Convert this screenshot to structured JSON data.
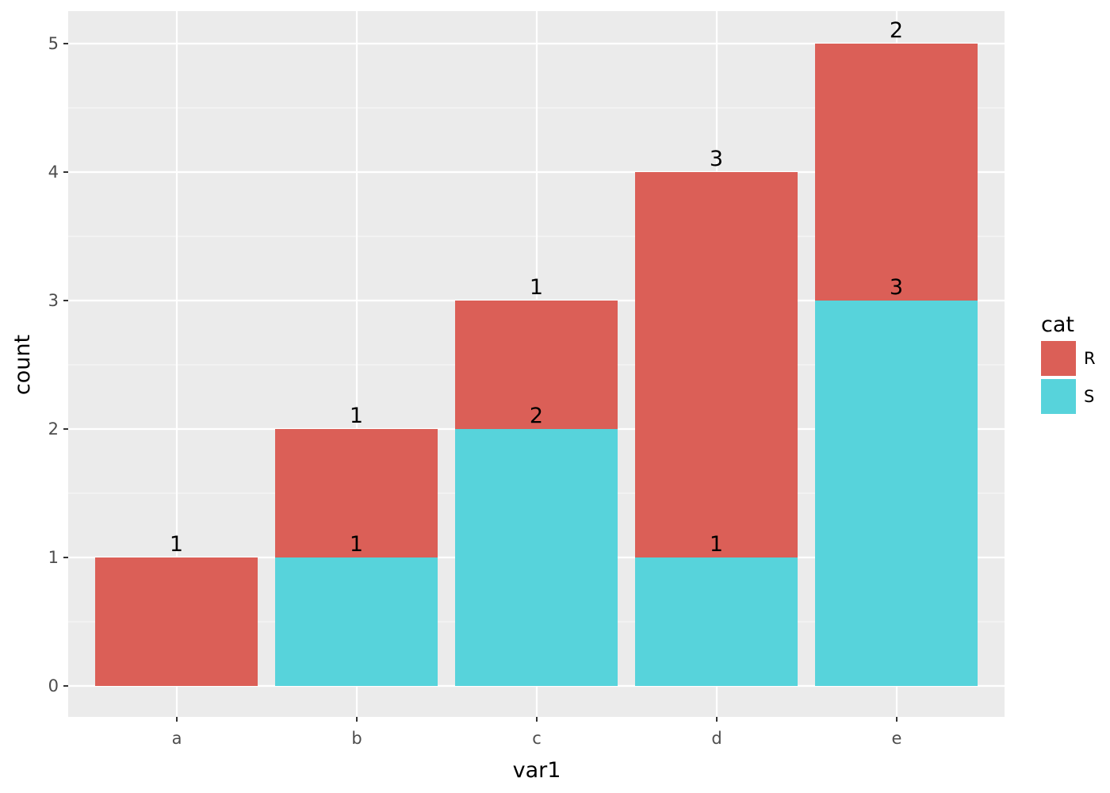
{
  "colors": {
    "panel_background": "#EBEBEB",
    "grid_major": "#FFFFFF",
    "grid_minor": "#F5F5F5",
    "R": "#DB5F57",
    "S": "#57D3DB"
  },
  "chart_data": {
    "type": "bar",
    "stacked": true,
    "categories": [
      "a",
      "b",
      "c",
      "d",
      "e"
    ],
    "series": [
      {
        "name": "S",
        "values": [
          0,
          1,
          2,
          1,
          3
        ]
      },
      {
        "name": "R",
        "values": [
          1,
          1,
          1,
          3,
          2
        ]
      }
    ],
    "xlabel": "var1",
    "ylabel": "count",
    "ylim": [
      0,
      5
    ],
    "yticks": [
      "0",
      "1",
      "2",
      "3",
      "4",
      "5"
    ],
    "grid": true,
    "legend": {
      "title": "cat",
      "position": "right",
      "items": [
        "R",
        "S"
      ]
    }
  }
}
